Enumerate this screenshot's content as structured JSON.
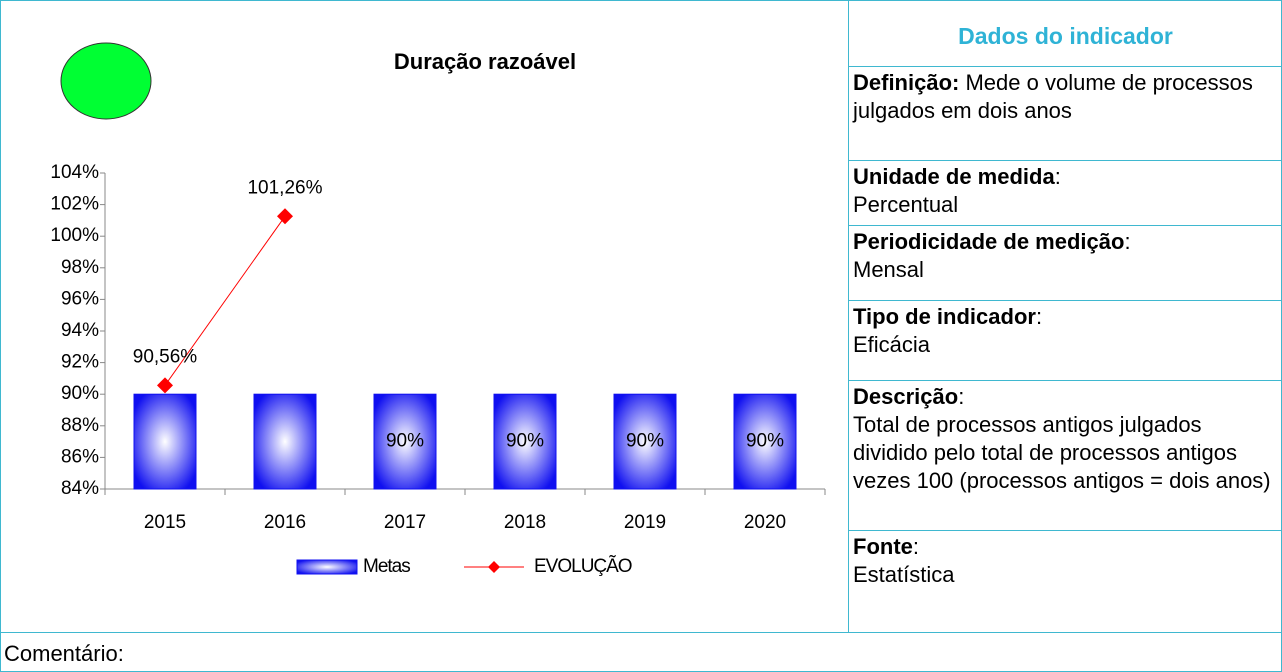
{
  "chart_data": {
    "type": "bar",
    "title": "Duração razoável",
    "categories": [
      "2015",
      "2016",
      "2017",
      "2018",
      "2019",
      "2020"
    ],
    "series": [
      {
        "name": "Metas",
        "type": "bar",
        "color": "#1010f0",
        "values": [
          90,
          90,
          90,
          90,
          90,
          90
        ],
        "value_labels": [
          null,
          null,
          "90%",
          "90%",
          "90%",
          "90%"
        ]
      },
      {
        "name": "EVOLUÇÃO",
        "type": "line",
        "color": "#ff0000",
        "values": [
          90.56,
          101.26,
          null,
          null,
          null,
          null
        ],
        "value_labels": [
          "90,56%",
          "101,26%",
          null,
          null,
          null,
          null
        ]
      }
    ],
    "ylim": [
      84,
      104
    ],
    "yticks": [
      {
        "value": 84,
        "label": "84%"
      },
      {
        "value": 86,
        "label": "86%"
      },
      {
        "value": 88,
        "label": "88%"
      },
      {
        "value": 90,
        "label": "90%"
      },
      {
        "value": 92,
        "label": "92%"
      },
      {
        "value": 94,
        "label": "94%"
      },
      {
        "value": 96,
        "label": "96%"
      },
      {
        "value": 98,
        "label": "98%"
      },
      {
        "value": 100,
        "label": "100%"
      },
      {
        "value": 102,
        "label": "102%"
      },
      {
        "value": 104,
        "label": "104%"
      }
    ],
    "grid": false,
    "legend": "bottom"
  },
  "panel": {
    "title": "Dados do indicador",
    "items": [
      {
        "label": "Definição:",
        "text": "Mede o volume de processos julgados em dois anos"
      },
      {
        "label": "Unidade de medida",
        "sep": ":",
        "text": "Percentual"
      },
      {
        "label": "Periodicidade de medição",
        "sep": ":",
        "text": "Mensal"
      },
      {
        "label": "Tipo de indicador",
        "sep": ":",
        "text": "Eficácia"
      },
      {
        "label": "Descrição",
        "sep": ":",
        "text": "Total de processos antigos julgados dividido pelo total de processos antigos vezes 100 (processos antigos = dois anos)"
      },
      {
        "label": "Fonte",
        "sep": ":",
        "text": "Estatística"
      }
    ]
  },
  "comment": "Comentário:"
}
